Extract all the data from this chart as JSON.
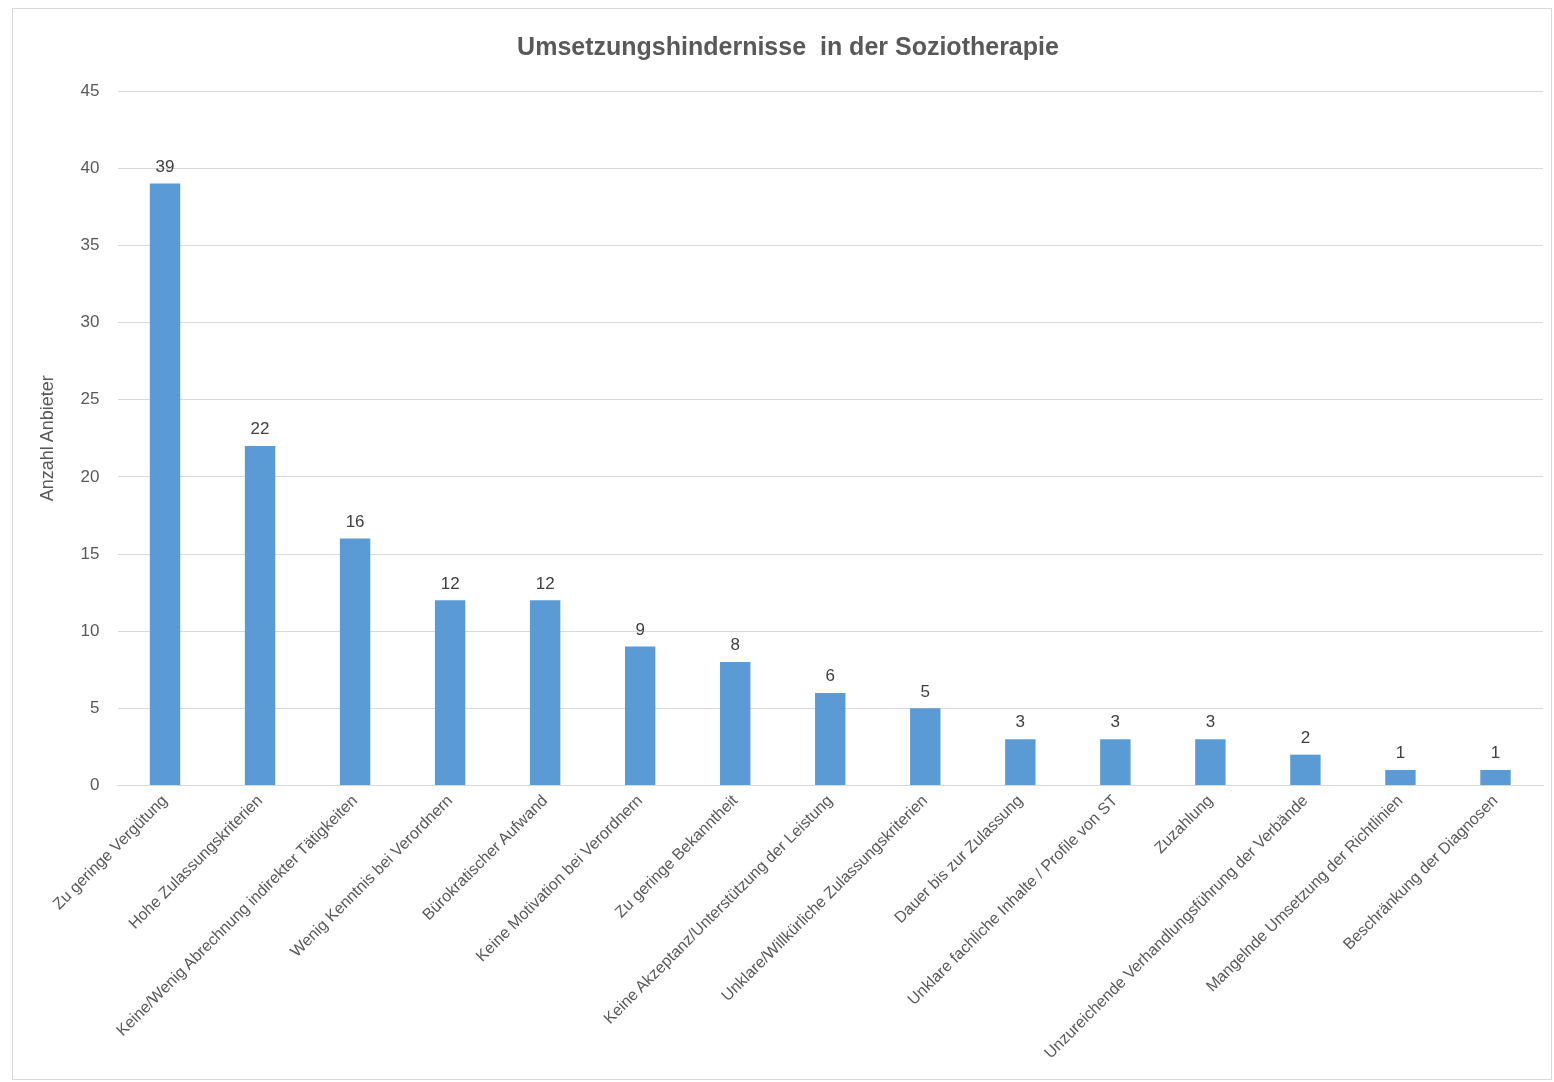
{
  "chart_data": {
    "type": "bar",
    "title": "Umsetzungshindernisse  in der Soziotherapie",
    "ylabel": "Anzahl Anbieter",
    "categories": [
      "Zu geringe Vergütung",
      "Hohe Zulassungskriterien",
      "Keine/Wenig Abrechnung indirekter Tätigkeiten",
      "Wenig Kenntnis bei Verordnern",
      "Bürokratischer Aufwand",
      "Keine Motivation bei Verordnern",
      "Zu geringe Bekanntheit",
      "Keine Akzeptanz/Unterstützung der Leistung",
      "Unklare/Willkürliche Zulassungskriterien",
      "Dauer bis zur Zulassung",
      "Unklare fachliche Inhalte / Profile von ST",
      "Zuzahlung",
      "Unzureichende Verhandlungsführung der Verbände",
      "Mangelnde Umsetzung der Richtlinien",
      "Beschränkung der Diagnosen"
    ],
    "values": [
      39,
      22,
      16,
      12,
      12,
      9,
      8,
      6,
      5,
      3,
      3,
      3,
      2,
      1,
      1
    ],
    "color": "#5b9bd5",
    "ylim": [
      0,
      45
    ],
    "yticks": [
      0,
      5,
      10,
      15,
      20,
      25,
      30,
      35,
      40,
      45
    ],
    "grid": "y",
    "data_labels": true,
    "legend": false
  }
}
